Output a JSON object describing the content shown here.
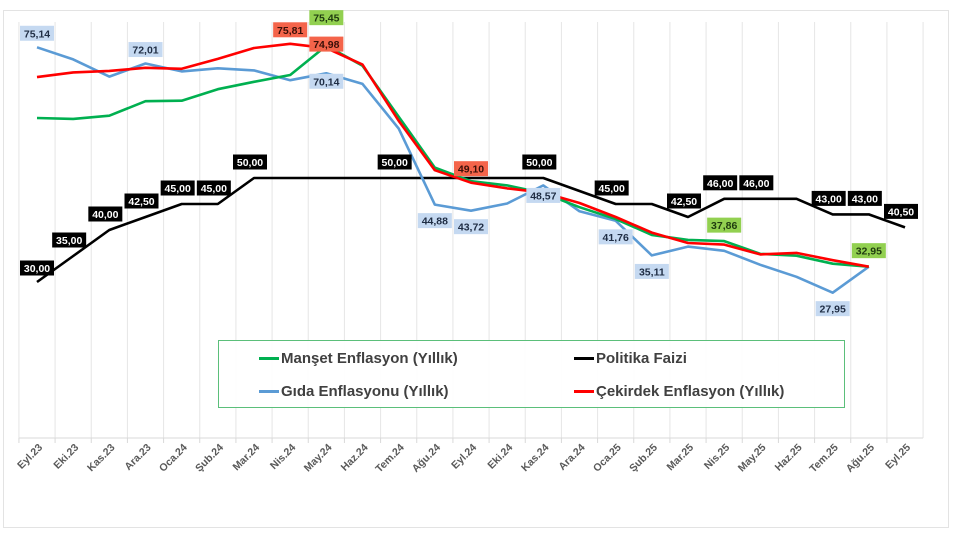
{
  "chart_data": {
    "type": "line",
    "title": "",
    "xlabel": "",
    "ylabel": "",
    "ylim": [
      0,
      80
    ],
    "grid": "vertical",
    "legend_position": "bottom-center-inside",
    "categories": [
      "Eyl.23",
      "Eki.23",
      "Kas.23",
      "Ara.23",
      "Oca.24",
      "Şub.24",
      "Mar.24",
      "Nis.24",
      "May.24",
      "Haz.24",
      "Tem.24",
      "Ağu.24",
      "Eyl.24",
      "Eki.24",
      "Kas.24",
      "Ara.24",
      "Oca.25",
      "Şub.25",
      "Mar.25",
      "Nis.25",
      "May.25",
      "Haz.25",
      "Tem.25",
      "Ağu.25",
      "Eyl.25"
    ],
    "series": [
      {
        "name": "Manşet Enflasyon (Yıllık)",
        "color": "#00b050",
        "values": [
          61.53,
          61.36,
          61.98,
          64.77,
          64.86,
          67.07,
          68.5,
          69.8,
          75.45,
          71.6,
          61.78,
          52.0,
          49.38,
          48.58,
          47.09,
          44.38,
          42.12,
          39.05,
          38.1,
          37.86,
          35.41,
          35.05,
          33.52,
          32.95,
          null
        ],
        "labels": [
          {
            "index": 8,
            "text": "75,45"
          },
          {
            "index": 19,
            "text": "37,86"
          },
          {
            "index": 23,
            "text": "32,95"
          }
        ],
        "label_bg": "#92d050",
        "label_color": "#1f3b0f"
      },
      {
        "name": "Politika Faizi",
        "color": "#000000",
        "values": [
          30,
          35,
          40,
          42.5,
          45,
          45,
          50,
          50,
          50,
          50,
          50,
          50,
          50,
          50,
          50,
          47.5,
          45,
          45,
          42.5,
          46,
          46,
          46,
          43,
          43,
          40.5
        ],
        "labels": [
          {
            "index": 0,
            "text": "30,00"
          },
          {
            "index": 1,
            "text": "35,00"
          },
          {
            "index": 2,
            "text": "40,00"
          },
          {
            "index": 3,
            "text": "42,50"
          },
          {
            "index": 4,
            "text": "45,00"
          },
          {
            "index": 5,
            "text": "45,00"
          },
          {
            "index": 6,
            "text": "50,00"
          },
          {
            "index": 10,
            "text": "50,00"
          },
          {
            "index": 14,
            "text": "50,00"
          },
          {
            "index": 16,
            "text": "45,00"
          },
          {
            "index": 18,
            "text": "42,50"
          },
          {
            "index": 19,
            "text": "46,00"
          },
          {
            "index": 20,
            "text": "46,00"
          },
          {
            "index": 22,
            "text": "43,00"
          },
          {
            "index": 23,
            "text": "43,00"
          },
          {
            "index": 24,
            "text": "40,50"
          }
        ],
        "label_bg": "#000000",
        "label_color": "#ffffff"
      },
      {
        "name": "Gıda Enflasyonu (Yıllık)",
        "color": "#5b9bd5",
        "values": [
          75.14,
          72.8,
          69.5,
          72.01,
          70.5,
          71.1,
          70.7,
          68.8,
          70.14,
          68.1,
          59.5,
          44.88,
          43.72,
          45.1,
          48.57,
          43.6,
          41.76,
          35.11,
          36.8,
          36.0,
          33.3,
          31.0,
          27.95,
          32.95,
          null
        ],
        "labels": [
          {
            "index": 0,
            "text": "75,14"
          },
          {
            "index": 3,
            "text": "72,01"
          },
          {
            "index": 8,
            "text": "70,14"
          },
          {
            "index": 11,
            "text": "44,88"
          },
          {
            "index": 12,
            "text": "43,72"
          },
          {
            "index": 14,
            "text": "48,57"
          },
          {
            "index": 16,
            "text": "41,76"
          },
          {
            "index": 17,
            "text": "35,11"
          },
          {
            "index": 22,
            "text": "27,95"
          }
        ],
        "label_bg": "#c5d9f1",
        "label_color": "#1f2d44"
      },
      {
        "name": "Çekirdek Enflasyon (Yıllık)",
        "color": "#ff0000",
        "values": [
          69.4,
          70.3,
          70.6,
          71.2,
          71.0,
          72.9,
          75.0,
          75.81,
          74.98,
          71.8,
          61.0,
          51.5,
          49.1,
          48.0,
          47.2,
          45.2,
          42.5,
          39.5,
          37.5,
          37.2,
          35.3,
          35.6,
          34.2,
          32.95,
          null
        ],
        "labels": [
          {
            "index": 7,
            "text": "75,81"
          },
          {
            "index": 8,
            "text": "74,98"
          },
          {
            "index": 12,
            "text": "49,10"
          }
        ],
        "label_bg": "#f4644a",
        "label_color": "#3a0f08"
      }
    ]
  },
  "legend": {
    "items": [
      {
        "label": "Manşet Enflasyon (Yıllık)",
        "color": "#00b050"
      },
      {
        "label": "Politika Faizi",
        "color": "#000000"
      },
      {
        "label": "Gıda Enflasyonu (Yıllık)",
        "color": "#5b9bd5"
      },
      {
        "label": "Çekirdek Enflasyon (Yıllık)",
        "color": "#ff0000"
      }
    ]
  }
}
